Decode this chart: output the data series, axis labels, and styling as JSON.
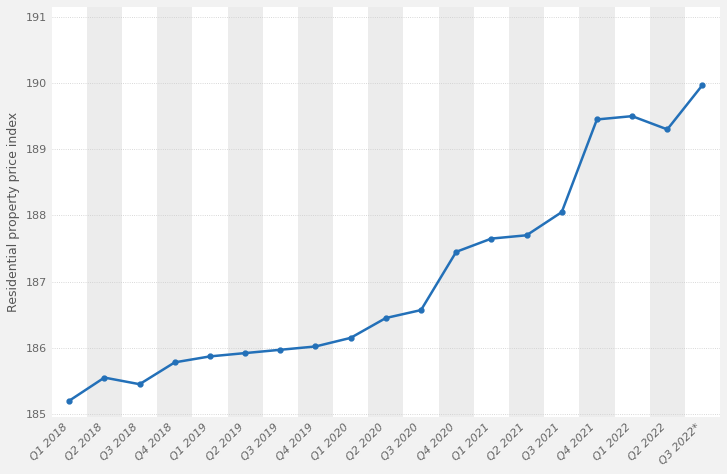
{
  "quarters": [
    "Q1 2018",
    "Q2 2018",
    "Q3 2018",
    "Q4 2018",
    "Q1 2019",
    "Q2 2019",
    "Q3 2019",
    "Q4 2019",
    "Q1 2020",
    "Q2 2020",
    "Q3 2020",
    "Q4 2020",
    "Q1 2021",
    "Q2 2021",
    "Q3 2021",
    "Q4 2021",
    "Q1 2022",
    "Q2 2022",
    "Q3 2022*"
  ],
  "values": [
    185.2,
    185.55,
    185.45,
    185.78,
    185.87,
    185.92,
    185.97,
    186.02,
    186.15,
    186.45,
    186.57,
    187.45,
    187.65,
    187.7,
    188.05,
    189.45,
    189.5,
    189.3,
    189.97
  ],
  "line_color": "#2370b8",
  "band_color": "#ececec",
  "fig_bg_color": "#f2f2f2",
  "plot_bg_color": "#ffffff",
  "grid_color": "#cccccc",
  "ylabel": "Residential property price index",
  "ylim_min": 184.95,
  "ylim_max": 191.15,
  "yticks": [
    185,
    186,
    187,
    188,
    189,
    190,
    191
  ],
  "axis_fontsize": 9,
  "tick_fontsize": 8,
  "line_width": 1.8,
  "marker_size": 3.5
}
